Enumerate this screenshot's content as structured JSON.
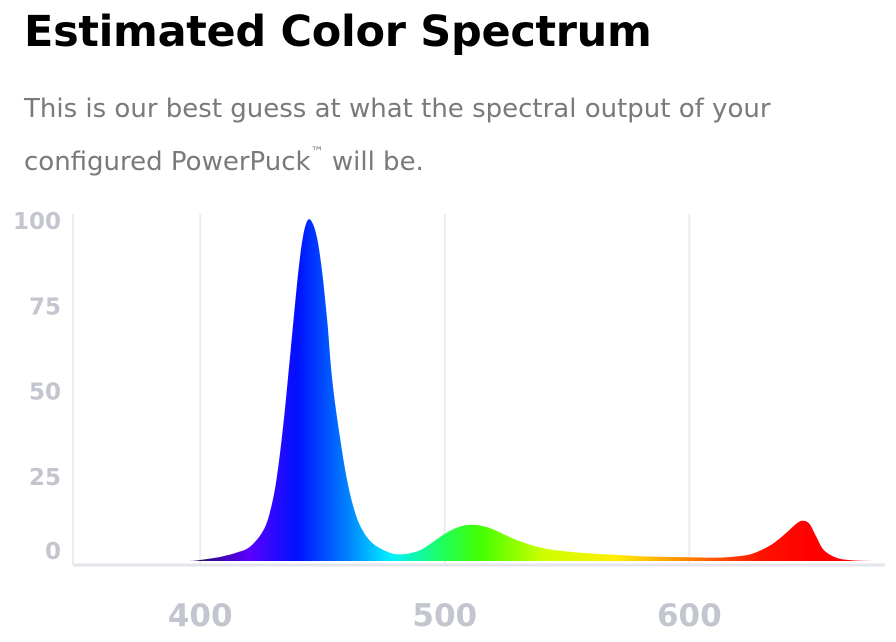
{
  "header": {
    "title": "Estimated Color Spectrum",
    "subtitle": "This is our best guess at what the spectral output of your configured PowerPuck",
    "subtitle_mark": "™",
    "subtitle_tail": " will be."
  },
  "chart_data": {
    "type": "area",
    "title": "",
    "xlabel": "",
    "ylabel": "",
    "xlim": [
      348,
      680
    ],
    "ylim": [
      0,
      100
    ],
    "grid": true,
    "x_ticks": [
      400,
      500,
      600
    ],
    "y_ticks": [
      0,
      25,
      50,
      75,
      100
    ],
    "fill": "wavelength gradient (violet to red)",
    "x": [
      348,
      380,
      395,
      400,
      405,
      410,
      415,
      420,
      425,
      428,
      431,
      434,
      437,
      440,
      442,
      444,
      446,
      448,
      450,
      452,
      454,
      457,
      460,
      463,
      466,
      470,
      475,
      480,
      485,
      490,
      495,
      500,
      505,
      510,
      515,
      520,
      530,
      540,
      550,
      560,
      570,
      580,
      590,
      600,
      610,
      615,
      620,
      625,
      630,
      635,
      640,
      643,
      646,
      649,
      652,
      655,
      660,
      665,
      670,
      675,
      680
    ],
    "y": [
      0,
      0,
      0,
      0.3,
      0.8,
      1.5,
      2.5,
      4,
      8,
      13,
      23,
      40,
      62,
      84,
      95,
      100,
      99,
      94,
      84,
      70,
      53,
      37,
      24,
      15,
      9.5,
      5.5,
      3.2,
      2,
      2.2,
      3.2,
      5.5,
      8,
      9.8,
      10.6,
      10.3,
      9.2,
      6,
      3.8,
      2.8,
      2.2,
      1.8,
      1.4,
      1.2,
      1.1,
      1.0,
      1.1,
      1.4,
      2.0,
      3.4,
      5.5,
      8.5,
      10.5,
      11.8,
      11.0,
      7.0,
      3.2,
      1.0,
      0.3,
      0.1,
      0,
      0
    ],
    "color_stops": [
      {
        "nm": 400,
        "color": "#2a0a7a"
      },
      {
        "nm": 420,
        "color": "#5a00ff"
      },
      {
        "nm": 440,
        "color": "#0011ff"
      },
      {
        "nm": 460,
        "color": "#0080ff"
      },
      {
        "nm": 478,
        "color": "#00f0ff"
      },
      {
        "nm": 500,
        "color": "#22ff55"
      },
      {
        "nm": 515,
        "color": "#44ff00"
      },
      {
        "nm": 540,
        "color": "#ccff00"
      },
      {
        "nm": 570,
        "color": "#ffee00"
      },
      {
        "nm": 590,
        "color": "#ffaa00"
      },
      {
        "nm": 610,
        "color": "#ff5500"
      },
      {
        "nm": 630,
        "color": "#ff1100"
      },
      {
        "nm": 650,
        "color": "#ff0000"
      },
      {
        "nm": 680,
        "color": "#ff0000"
      }
    ]
  }
}
